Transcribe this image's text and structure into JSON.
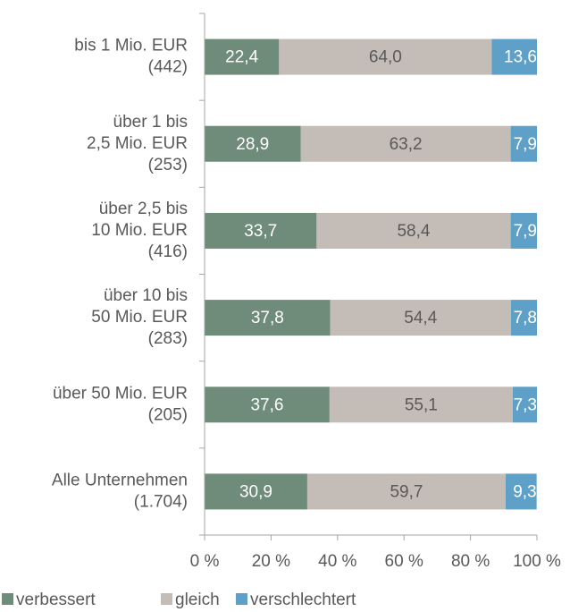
{
  "chart_data": {
    "type": "stacked_bar_horizontal",
    "categories": [
      [
        "bis 1 Mio. EUR",
        "(442)"
      ],
      [
        "über 1 bis",
        "2,5 Mio. EUR",
        "(253)"
      ],
      [
        "über 2,5 bis",
        "10 Mio. EUR",
        "(416)"
      ],
      [
        "über 10 bis",
        "50 Mio. EUR",
        "(283)"
      ],
      [
        "über 50 Mio. EUR",
        "(205)"
      ],
      [
        "Alle Unternehmen",
        "(1.704)"
      ]
    ],
    "series": [
      {
        "name": "verbessert",
        "color": "#6f8c7b",
        "values": [
          22.4,
          28.9,
          33.7,
          37.8,
          37.6,
          30.9
        ],
        "value_labels": [
          "22,4",
          "28,9",
          "33,7",
          "37,8",
          "37,6",
          "30,9"
        ]
      },
      {
        "name": "gleich",
        "color": "#c3bcb7",
        "values": [
          64.0,
          63.2,
          58.4,
          54.4,
          55.1,
          59.7
        ],
        "value_labels": [
          "64,0",
          "63,2",
          "58,4",
          "54,4",
          "55,1",
          "59,7"
        ]
      },
      {
        "name": "verschlechtert",
        "color": "#5ea0c8",
        "values": [
          13.6,
          7.9,
          7.9,
          7.8,
          7.3,
          9.3
        ],
        "value_labels": [
          "13,6",
          "7,9",
          "7,9",
          "7,8",
          "7,3",
          "9,3"
        ]
      }
    ],
    "xlim": [
      0,
      100
    ],
    "xticks": [
      {
        "value": 0,
        "label": "0 %"
      },
      {
        "value": 20,
        "label": "20 %"
      },
      {
        "value": 40,
        "label": "40 %"
      },
      {
        "value": 60,
        "label": "60 %"
      },
      {
        "value": 80,
        "label": "80 %"
      },
      {
        "value": 100,
        "label": "100 %"
      }
    ],
    "legend": "bottom"
  }
}
